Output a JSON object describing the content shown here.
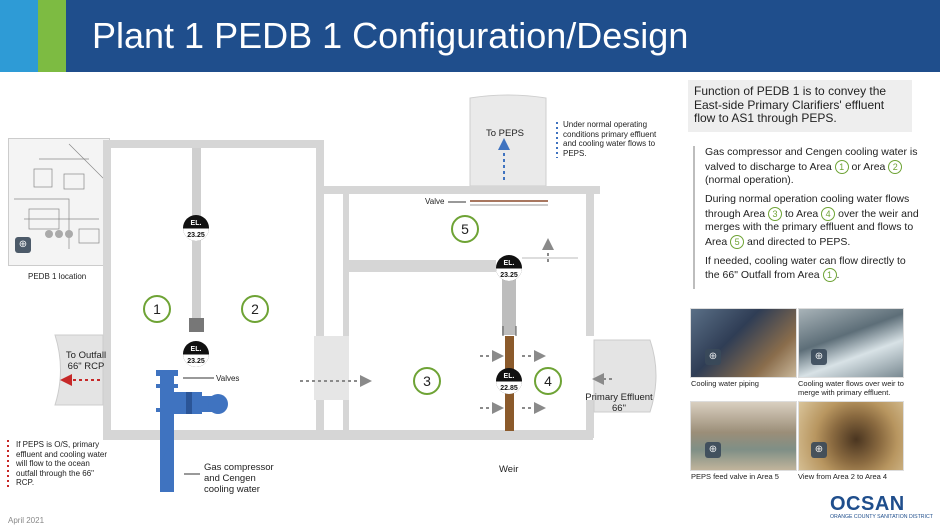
{
  "header": {
    "title": "Plant 1 PEDB 1 Configuration/Design"
  },
  "callout": {
    "text": "Function of PEDB 1 is to convey the East-side Primary Clarifiers' effluent flow to AS1 through PEPS."
  },
  "description": {
    "p1a": "Gas compressor and Cengen cooling water is valved to discharge to Area",
    "p1b": "or Area",
    "p1c": "(normal operation).",
    "p2a": "During normal operation cooling water flows through Area",
    "p2b": "to Area",
    "p2c": "over the weir and merges with the primary effluent and flows to Area",
    "p2d": "and directed to PEPS.",
    "p3a": "If needed, cooling water can flow directly to the 66\" Outfall from Area",
    "p3b": "."
  },
  "areas": {
    "a1": "1",
    "a2": "2",
    "a3": "3",
    "a4": "4",
    "a5": "5"
  },
  "elevations": {
    "el_label": "EL.",
    "el1": "23.25",
    "el2": "23.25",
    "el3": "23.25",
    "el4": "22.85"
  },
  "labels": {
    "to_peps": "To PEPS",
    "peps_note": "Under normal operating conditions primary effluent and cooling water flows to PEPS.",
    "valve": "Valve",
    "valves": "Valves",
    "weir": "Weir",
    "to_outfall": "To Outfall 66\" RCP",
    "primary_effluent": "Primary Effluent 66\"",
    "gas_compressor": "Gas compressor and Cengen cooling water",
    "pedb_location": "PEDB 1 location",
    "outfall_note": "If PEPS is O/S, primary effluent and cooling water will flow to the ocean outfall through the 66\" RCP.",
    "date": "April 2021"
  },
  "photos": [
    {
      "caption": "Cooling water piping"
    },
    {
      "caption": "Cooling water flows over weir to merge with primary effluent."
    },
    {
      "caption": "PEPS feed valve in Area 5"
    },
    {
      "caption": "View from Area 2 to Area 4"
    }
  ],
  "logo": {
    "name": "OCSAN",
    "subtitle": "ORANGE COUNTY SANITATION DISTRICT"
  },
  "colors": {
    "header": "#1f4e8c",
    "accent_blue": "#2e9bd6",
    "accent_green": "#7dbb42",
    "area_green": "#6ea335",
    "arrow_red": "#c62828",
    "pipe_blue": "#3f73c0"
  }
}
